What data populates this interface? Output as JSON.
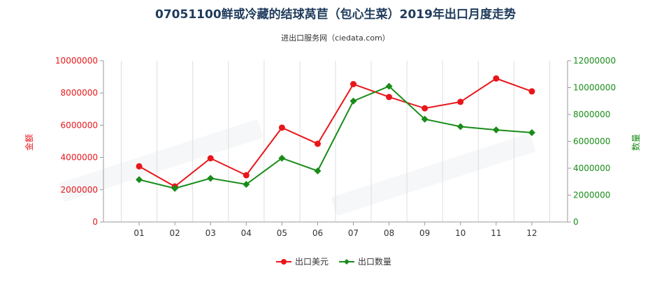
{
  "chart_data": {
    "type": "line",
    "title": "07051100鲜或冷藏的结球莴苣（包心生菜）2019年出口月度走势",
    "subtitle": "进出口服务网（ciedata.com）",
    "ylabel_left": "金额",
    "ylabel_right": "数量",
    "categories": [
      "01",
      "02",
      "03",
      "04",
      "05",
      "06",
      "07",
      "08",
      "09",
      "10",
      "11",
      "12"
    ],
    "ylim_left": [
      0,
      10000000
    ],
    "ylim_right": [
      0,
      12000000
    ],
    "yticks_left": [
      "0",
      "2000000",
      "4000000",
      "6000000",
      "8000000",
      "10000000"
    ],
    "yticks_right": [
      "0",
      "2000000",
      "4000000",
      "6000000",
      "8000000",
      "10000000",
      "12000000"
    ],
    "left_tick_values": [
      0,
      2000000,
      4000000,
      6000000,
      8000000,
      10000000
    ],
    "right_tick_values": [
      0,
      2000000,
      4000000,
      6000000,
      8000000,
      10000000,
      12000000
    ],
    "grid": "vertical",
    "legend_position": "bottom",
    "series": [
      {
        "name": "出口美元",
        "axis": "left",
        "color": "#e8161a",
        "marker": "circle",
        "values": [
          3450000,
          2200000,
          3950000,
          2900000,
          5850000,
          4850000,
          8550000,
          7750000,
          7050000,
          7450000,
          8900000,
          8100000
        ]
      },
      {
        "name": "出口数量",
        "axis": "right",
        "color": "#198c19",
        "marker": "diamond",
        "values": [
          3150000,
          2500000,
          3250000,
          2800000,
          4750000,
          3800000,
          9000000,
          10100000,
          7650000,
          7100000,
          6850000,
          6650000
        ]
      }
    ]
  }
}
